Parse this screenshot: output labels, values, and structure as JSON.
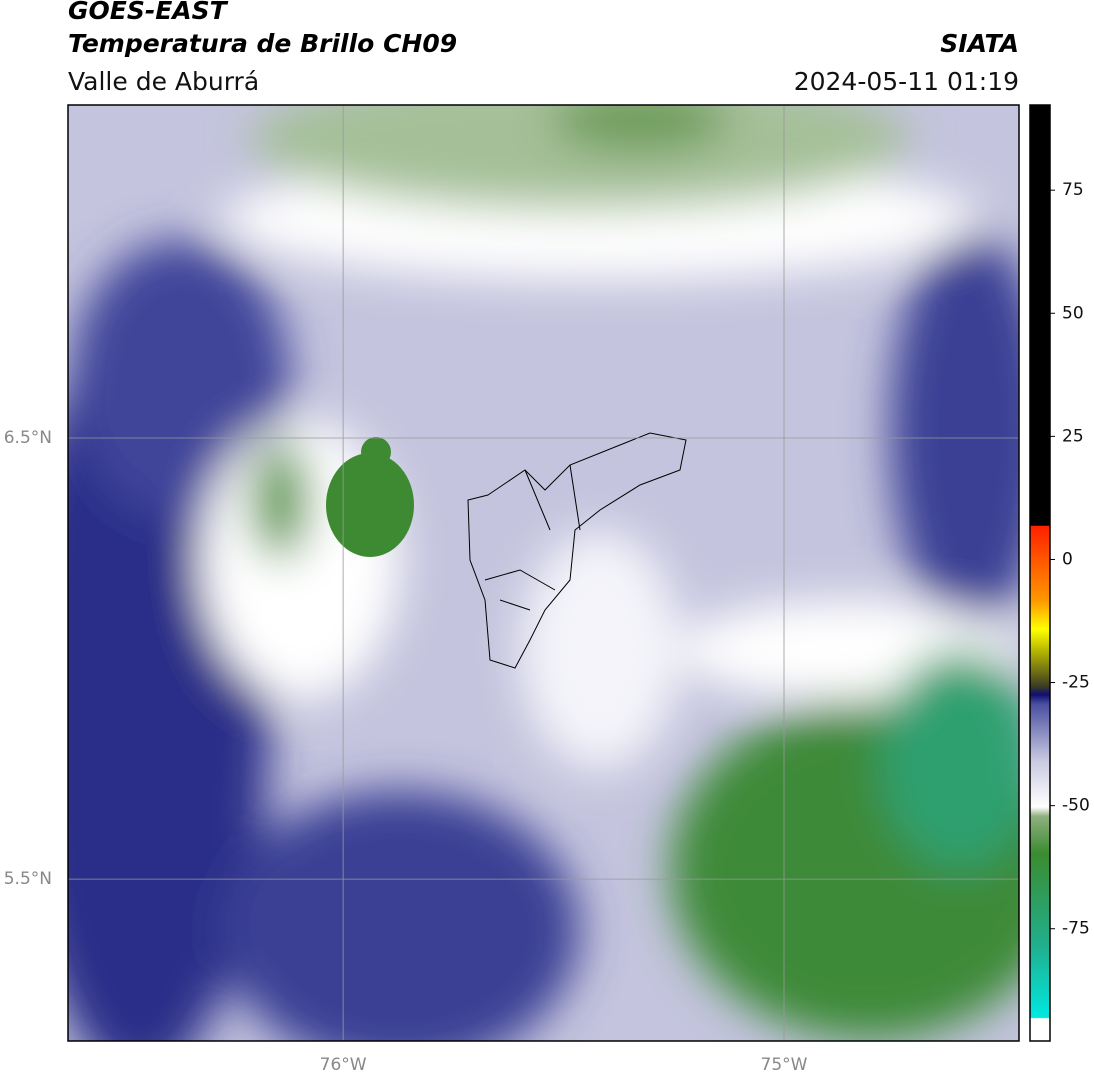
{
  "header": {
    "title": "GOES-EAST",
    "subtitle": "Temperatura de Brillo CH09",
    "region": "Valle de Aburrá",
    "source": "SIATA",
    "datetime": "2024-05-11 01:19"
  },
  "map": {
    "lonlim": [
      -76.624,
      -74.467
    ],
    "latlim": [
      5.133,
      7.255
    ],
    "lon_lines": [
      {
        "value": -76,
        "label": "76°W"
      },
      {
        "value": -75,
        "label": "75°W"
      }
    ],
    "lat_lines": [
      {
        "value": 6.5,
        "label": "6.5°N"
      },
      {
        "value": 5.5,
        "label": "5.5°N"
      }
    ]
  },
  "colorbar": {
    "lim": [
      -97.8,
      92.3
    ],
    "ticks": [
      75,
      50,
      25,
      0,
      -25,
      -50,
      -75
    ]
  }
}
